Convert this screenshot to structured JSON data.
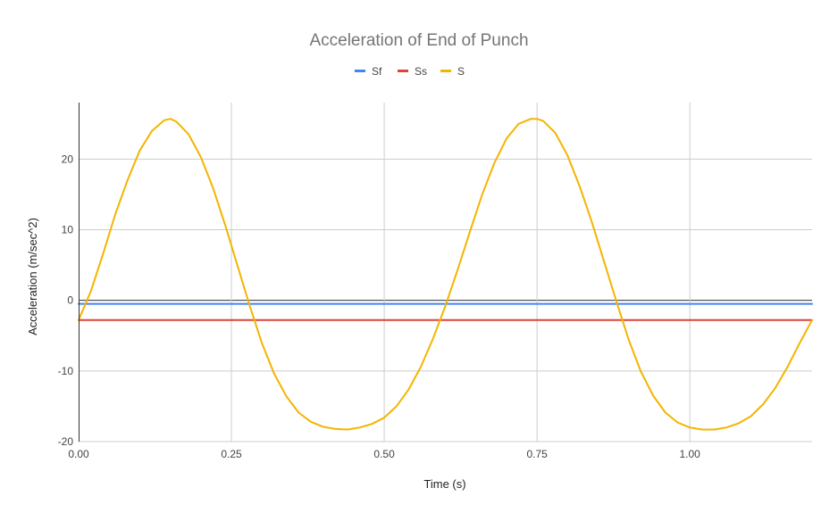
{
  "chart_data": {
    "type": "line",
    "title": "Acceleration of End of Punch",
    "xlabel": "Time (s)",
    "ylabel": "Acceleration (m/sec^2)",
    "xlim": [
      0,
      1.2
    ],
    "ylim": [
      -20,
      28
    ],
    "x_ticks": [
      "0.00",
      "0.25",
      "0.50",
      "0.75",
      "1.00"
    ],
    "y_ticks": [
      "-20",
      "-10",
      "0",
      "10",
      "20"
    ],
    "grid": true,
    "legend_position": "top",
    "series": [
      {
        "name": "Sf",
        "color": "#4285f4",
        "x": [
          0,
          1.2
        ],
        "y": [
          -0.5,
          -0.5
        ]
      },
      {
        "name": "Ss",
        "color": "#db4437",
        "x": [
          0,
          1.2
        ],
        "y": [
          -2.8,
          -2.8
        ]
      },
      {
        "name": "S",
        "color": "#f4b400",
        "x": [
          0,
          0.02,
          0.04,
          0.06,
          0.08,
          0.1,
          0.12,
          0.14,
          0.15,
          0.16,
          0.18,
          0.2,
          0.22,
          0.24,
          0.26,
          0.28,
          0.3,
          0.32,
          0.34,
          0.36,
          0.38,
          0.4,
          0.42,
          0.44,
          0.46,
          0.48,
          0.5,
          0.52,
          0.54,
          0.56,
          0.58,
          0.6,
          0.62,
          0.64,
          0.66,
          0.68,
          0.7,
          0.72,
          0.74,
          0.75,
          0.76,
          0.78,
          0.8,
          0.82,
          0.84,
          0.86,
          0.88,
          0.9,
          0.92,
          0.94,
          0.96,
          0.98,
          1.0,
          1.02,
          1.04,
          1.06,
          1.08,
          1.1,
          1.12,
          1.14,
          1.16,
          1.18,
          1.2
        ],
        "y": [
          -2.8,
          1.3,
          6.6,
          12.2,
          17.0,
          21.2,
          24.0,
          25.5,
          25.7,
          25.3,
          23.5,
          20.3,
          15.9,
          10.6,
          4.9,
          -0.8,
          -6.1,
          -10.4,
          -13.6,
          -15.9,
          -17.2,
          -17.9,
          -18.2,
          -18.3,
          -18.0,
          -17.5,
          -16.6,
          -15.0,
          -12.6,
          -9.4,
          -5.4,
          -0.8,
          4.3,
          9.7,
          14.9,
          19.4,
          22.9,
          25.0,
          25.7,
          25.7,
          25.4,
          23.7,
          20.5,
          16.1,
          11.0,
          5.4,
          -0.2,
          -5.6,
          -10.1,
          -13.5,
          -15.9,
          -17.3,
          -18.0,
          -18.3,
          -18.3,
          -18.0,
          -17.4,
          -16.4,
          -14.7,
          -12.4,
          -9.4,
          -6.0,
          -2.8
        ]
      }
    ]
  }
}
